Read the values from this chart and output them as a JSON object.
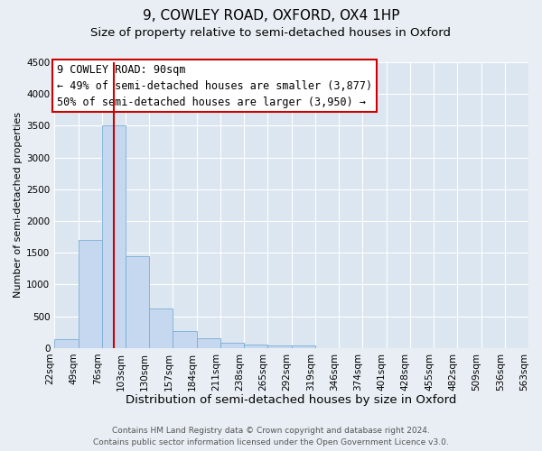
{
  "title": "9, COWLEY ROAD, OXFORD, OX4 1HP",
  "subtitle": "Size of property relative to semi-detached houses in Oxford",
  "xlabel": "Distribution of semi-detached houses by size in Oxford",
  "ylabel": "Number of semi-detached properties",
  "bar_values": [
    140,
    1700,
    3500,
    1450,
    625,
    270,
    160,
    90,
    50,
    45,
    40,
    0,
    0,
    0,
    0,
    0,
    0,
    0,
    0,
    0
  ],
  "categories": [
    "22sqm",
    "49sqm",
    "76sqm",
    "103sqm",
    "130sqm",
    "157sqm",
    "184sqm",
    "211sqm",
    "238sqm",
    "265sqm",
    "292sqm",
    "319sqm",
    "346sqm",
    "374sqm",
    "401sqm",
    "428sqm",
    "455sqm",
    "482sqm",
    "509sqm",
    "536sqm",
    "563sqm"
  ],
  "bar_color": "#c5d8f0",
  "bar_edgecolor": "#7aadd4",
  "vline_x": 90,
  "vline_color": "#cc0000",
  "ylim": [
    0,
    4500
  ],
  "yticks": [
    0,
    500,
    1000,
    1500,
    2000,
    2500,
    3000,
    3500,
    4000,
    4500
  ],
  "annotation_title": "9 COWLEY ROAD: 90sqm",
  "annotation_line1": "← 49% of semi-detached houses are smaller (3,877)",
  "annotation_line2": "50% of semi-detached houses are larger (3,950) →",
  "annotation_box_color": "#ffffff",
  "annotation_box_edgecolor": "#cc0000",
  "footer1": "Contains HM Land Registry data © Crown copyright and database right 2024.",
  "footer2": "Contains public sector information licensed under the Open Government Licence v3.0.",
  "background_color": "#e8eef4",
  "plot_background": "#dce6f0",
  "grid_color": "#ffffff",
  "title_fontsize": 11,
  "subtitle_fontsize": 9.5,
  "xlabel_fontsize": 9.5,
  "ylabel_fontsize": 8,
  "tick_fontsize": 7.5,
  "annotation_fontsize": 8.5,
  "footer_fontsize": 6.5
}
